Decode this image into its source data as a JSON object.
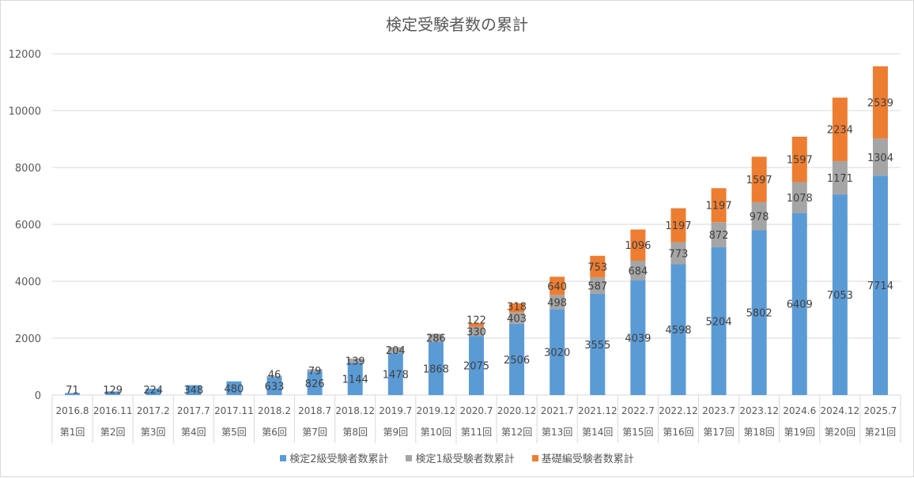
{
  "chart_data": {
    "type": "bar",
    "stacked": true,
    "title": "検定受験者数の累計",
    "categories": [
      "2016.8",
      "2016.11",
      "2017.2",
      "2017.7",
      "2017.11",
      "2018.2",
      "2018.7",
      "2018.12",
      "2019.7",
      "2019.12",
      "2020.7",
      "2020.12",
      "2021.7",
      "2021.12",
      "2022.7",
      "2022.12",
      "2023.7",
      "2023.12",
      "2024.6",
      "2024.12",
      "2025.7"
    ],
    "category_sublabels": [
      "第1回",
      "第2回",
      "第3回",
      "第4回",
      "第5回",
      "第6回",
      "第7回",
      "第8回",
      "第9回",
      "第10回",
      "第11回",
      "第12回",
      "第13回",
      "第14回",
      "第15回",
      "第16回",
      "第17回",
      "第18回",
      "第19回",
      "第20回",
      "第21回"
    ],
    "series": [
      {
        "name": "検定2級受験者数累計",
        "color": "#5b9bd5",
        "values": [
          71,
          129,
          224,
          348,
          480,
          633,
          826,
          1144,
          1478,
          1868,
          2075,
          2506,
          3020,
          3555,
          4039,
          4598,
          5204,
          5802,
          6409,
          7053,
          7714
        ]
      },
      {
        "name": "検定1級受験者数累計",
        "color": "#a5a5a5",
        "values": [
          null,
          null,
          null,
          null,
          null,
          46,
          79,
          139,
          204,
          286,
          330,
          403,
          498,
          587,
          684,
          773,
          872,
          978,
          1078,
          1171,
          1304
        ]
      },
      {
        "name": "基礎編受験者数累計",
        "color": "#ed7d31",
        "values": [
          null,
          null,
          null,
          null,
          null,
          null,
          null,
          null,
          null,
          null,
          122,
          318,
          640,
          753,
          1096,
          1197,
          1197,
          1597,
          1597,
          2234,
          2539
        ]
      }
    ],
    "ylim": [
      0,
      12000
    ],
    "yticks": [
      0,
      2000,
      4000,
      6000,
      8000,
      10000,
      12000
    ],
    "grid": true,
    "legend": "bottom",
    "data_labels": true
  }
}
